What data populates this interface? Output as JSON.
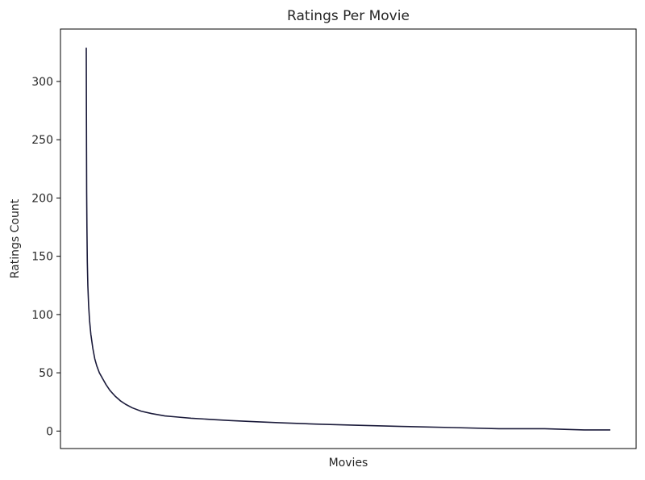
{
  "chart_data": {
    "type": "line",
    "title": "Ratings Per Movie",
    "xlabel": "Movies",
    "ylabel": "Ratings Count",
    "x_ticks_visible": false,
    "ylim": [
      -15,
      345
    ],
    "yticks": [
      0,
      50,
      100,
      150,
      200,
      250,
      300
    ],
    "grid": false,
    "legend": "none",
    "line_color": "#1a1a3a",
    "series": [
      {
        "x": [
          0,
          1,
          2,
          3,
          5,
          8,
          12,
          18,
          25,
          35,
          50,
          65,
          80,
          100,
          125,
          150,
          180,
          220,
          260,
          300,
          350,
          420,
          500,
          600,
          700,
          800,
          950,
          1100,
          1300,
          1500,
          1750,
          2050,
          2400,
          2800,
          3150,
          3500,
          3800,
          4000
        ],
        "values": [
          329,
          280,
          240,
          205,
          175,
          145,
          125,
          108,
          95,
          83,
          71,
          62,
          56,
          50,
          45,
          40,
          35,
          30,
          26,
          23,
          20,
          17,
          15,
          13,
          12,
          11,
          10,
          9,
          8,
          7,
          6,
          5,
          4,
          3,
          2,
          2,
          1,
          1
        ]
      }
    ]
  }
}
